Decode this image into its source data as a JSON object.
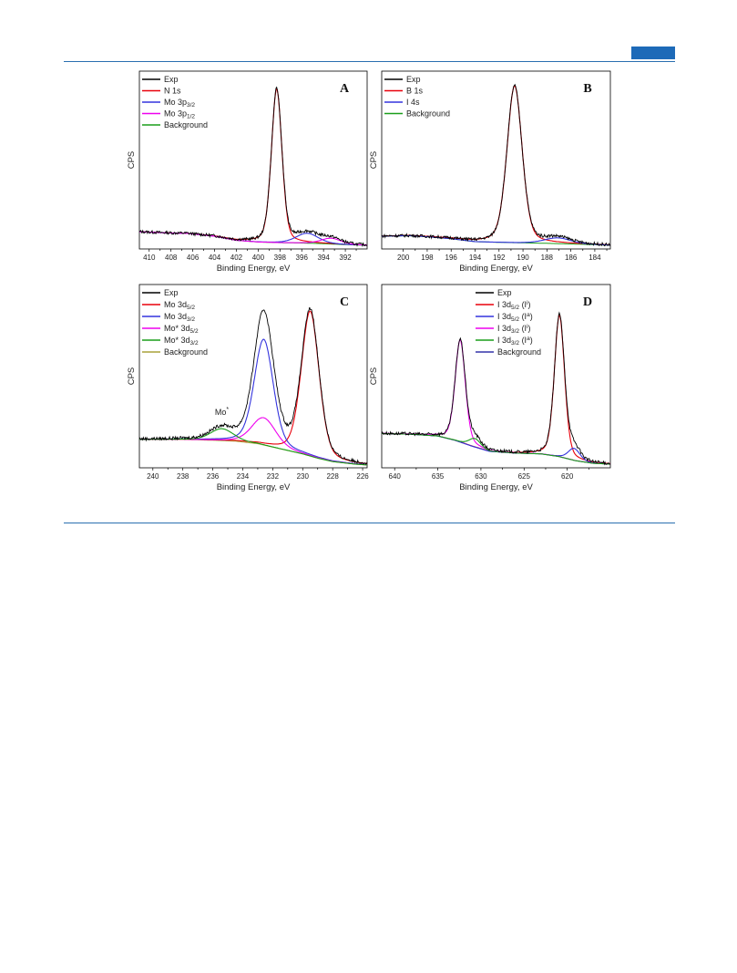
{
  "chart_data": [
    {
      "panel": "A",
      "type": "line",
      "xlabel": "Binding Energy, eV",
      "ylabel": "CPS",
      "xlim": [
        410.9,
        390.0
      ],
      "xticks": [
        410,
        408,
        406,
        404,
        402,
        400,
        398,
        396,
        394,
        392
      ],
      "ylim": [
        0,
        1
      ],
      "legend_position": "top-left",
      "legend": [
        {
          "label": "Exp",
          "color": "#000000"
        },
        {
          "label": "N 1s",
          "color": "#e8000b"
        },
        {
          "label": "Mo 3p",
          "sub": "3/2",
          "color": "#3333dd"
        },
        {
          "label": "Mo 3p",
          "sub": "1/2",
          "color": "#ee00ee"
        },
        {
          "label": "Background",
          "color": "#1a9e1a"
        }
      ],
      "background": [
        [
          410.9,
          0.082
        ],
        [
          408,
          0.074
        ],
        [
          406.5,
          0.072
        ],
        [
          404,
          0.055
        ],
        [
          402,
          0.03
        ],
        [
          400,
          0.02
        ],
        [
          398,
          0.016
        ],
        [
          396,
          0.014
        ],
        [
          394,
          0.01
        ],
        [
          392,
          0.004
        ],
        [
          390,
          0.0
        ]
      ],
      "peaks": [
        {
          "name": "N 1s",
          "center": 398.3,
          "height": 0.93,
          "fwhm": 1.15,
          "color": "#e8000b"
        },
        {
          "name": "Mo 3p3/2",
          "center": 395.5,
          "height": 0.06,
          "fwhm": 2.4,
          "color": "#3333dd"
        },
        {
          "name": "Mo 3p1/2",
          "center": 393.3,
          "height": 0.035,
          "fwhm": 2.2,
          "color": "#ee00ee"
        }
      ]
    },
    {
      "panel": "B",
      "type": "line",
      "xlabel": "Binding Energy, eV",
      "ylabel": "CPS",
      "xlim": [
        201.8,
        182.7
      ],
      "xticks": [
        200,
        198,
        196,
        194,
        192,
        190,
        188,
        186,
        184
      ],
      "ylim": [
        0,
        1
      ],
      "legend_position": "top-left",
      "legend": [
        {
          "label": "Exp",
          "color": "#000000"
        },
        {
          "label": "B 1s",
          "color": "#e8000b"
        },
        {
          "label": "I 4s",
          "color": "#3333dd"
        },
        {
          "label": "Background",
          "color": "#1a9e1a"
        }
      ],
      "background": [
        [
          201.8,
          0.055
        ],
        [
          199.5,
          0.058
        ],
        [
          198,
          0.052
        ],
        [
          196,
          0.04
        ],
        [
          194,
          0.022
        ],
        [
          192,
          0.018
        ],
        [
          190,
          0.015
        ],
        [
          188,
          0.012
        ],
        [
          186,
          0.008
        ],
        [
          184,
          0.004
        ],
        [
          182.7,
          0.0
        ]
      ],
      "peaks": [
        {
          "name": "B 1s",
          "center": 190.7,
          "height": 0.95,
          "fwhm": 1.5,
          "color": "#e8000b"
        },
        {
          "name": "I 4s",
          "center": 187.1,
          "height": 0.035,
          "fwhm": 2.6,
          "color": "#3333dd"
        }
      ]
    },
    {
      "panel": "C",
      "type": "line",
      "xlabel": "Binding Energy, eV",
      "ylabel": "CPS",
      "xlim": [
        240.9,
        225.7
      ],
      "xticks": [
        240,
        238,
        236,
        234,
        232,
        230,
        228,
        226
      ],
      "ylim": [
        0,
        1
      ],
      "legend_position": "top-left",
      "annotation": {
        "text": "Mo",
        "sup": "*",
        "x": 235.4,
        "y": 0.29
      },
      "legend": [
        {
          "label": "Exp",
          "color": "#000000"
        },
        {
          "label": "Mo 3d",
          "sub": "5/2",
          "color": "#e8000b"
        },
        {
          "label": "Mo 3d",
          "sub": "3/2",
          "color": "#3333dd"
        },
        {
          "label": "Mo* 3d",
          "sub": "5/2",
          "color": "#ee00ee"
        },
        {
          "label": "Mo* 3d",
          "sub": "3/2",
          "color": "#1a9e1a"
        },
        {
          "label": "Background",
          "color": "#a8a23a"
        }
      ],
      "background": [
        [
          240.9,
          0.145
        ],
        [
          238,
          0.145
        ],
        [
          236,
          0.14
        ],
        [
          234.5,
          0.135
        ],
        [
          233,
          0.12
        ],
        [
          232,
          0.1
        ],
        [
          231,
          0.08
        ],
        [
          230,
          0.06
        ],
        [
          229,
          0.035
        ],
        [
          228,
          0.015
        ],
        [
          226.5,
          0.0
        ],
        [
          225.7,
          -0.005
        ]
      ],
      "peaks": [
        {
          "name": "Mo 3d5/2",
          "center": 229.5,
          "height": 0.85,
          "fwhm": 1.4,
          "color": "#e8000b"
        },
        {
          "name": "Mo 3d3/2",
          "center": 232.6,
          "height": 0.62,
          "fwhm": 1.5,
          "color": "#3333dd"
        },
        {
          "name": "Mo* 3d5/2",
          "center": 232.6,
          "height": 0.16,
          "fwhm": 1.9,
          "color": "#ee00ee"
        },
        {
          "name": "Mo* 3d3/2",
          "center": 235.4,
          "height": 0.07,
          "fwhm": 1.8,
          "color": "#1a9e1a"
        }
      ]
    },
    {
      "panel": "D",
      "type": "line",
      "xlabel": "Binding Energy, eV",
      "ylabel": "CPS",
      "xlim": [
        641.5,
        615.0
      ],
      "xticks": [
        640,
        635,
        630,
        625,
        620
      ],
      "ylim": [
        0,
        1
      ],
      "legend_position": "top-right",
      "legend": [
        {
          "label": "Exp",
          "color": "#000000"
        },
        {
          "label": "I 3d",
          "sub": "5/2",
          "tail": " (I",
          "tailsup": "i",
          "tailend": ")",
          "color": "#e8000b"
        },
        {
          "label": "I 3d",
          "sub": "5/2",
          "tail": " (I",
          "tailsup": "a",
          "tailend": ")",
          "color": "#3333dd"
        },
        {
          "label": "I 3d",
          "sub": "3/2",
          "tail": " (I",
          "tailsup": "i",
          "tailend": ")",
          "color": "#ee00ee"
        },
        {
          "label": "I 3d",
          "sub": "3/2",
          "tail": " (I",
          "tailsup": "a",
          "tailend": ")",
          "color": "#1a9e1a"
        },
        {
          "label": "Background",
          "color": "#3333aa"
        }
      ],
      "background": [
        [
          641.5,
          0.18
        ],
        [
          638,
          0.175
        ],
        [
          635,
          0.165
        ],
        [
          633,
          0.14
        ],
        [
          631,
          0.105
        ],
        [
          629,
          0.075
        ],
        [
          626,
          0.065
        ],
        [
          623,
          0.06
        ],
        [
          621,
          0.045
        ],
        [
          619,
          0.02
        ],
        [
          617,
          0.005
        ],
        [
          615,
          0.0
        ]
      ],
      "peaks": [
        {
          "name": "I 3d5/2 (Ii)",
          "center": 620.9,
          "height": 0.83,
          "fwhm": 1.4,
          "color": "#e8000b"
        },
        {
          "name": "I 3d5/2 (Ia)",
          "center": 619.2,
          "height": 0.07,
          "fwhm": 1.6,
          "color": "#3333dd"
        },
        {
          "name": "I 3d3/2 (Ii)",
          "center": 632.4,
          "height": 0.6,
          "fwhm": 1.4,
          "color": "#ee00ee"
        },
        {
          "name": "I 3d3/2 (Ia)",
          "center": 630.7,
          "height": 0.05,
          "fwhm": 1.6,
          "color": "#1a9e1a"
        }
      ]
    }
  ]
}
